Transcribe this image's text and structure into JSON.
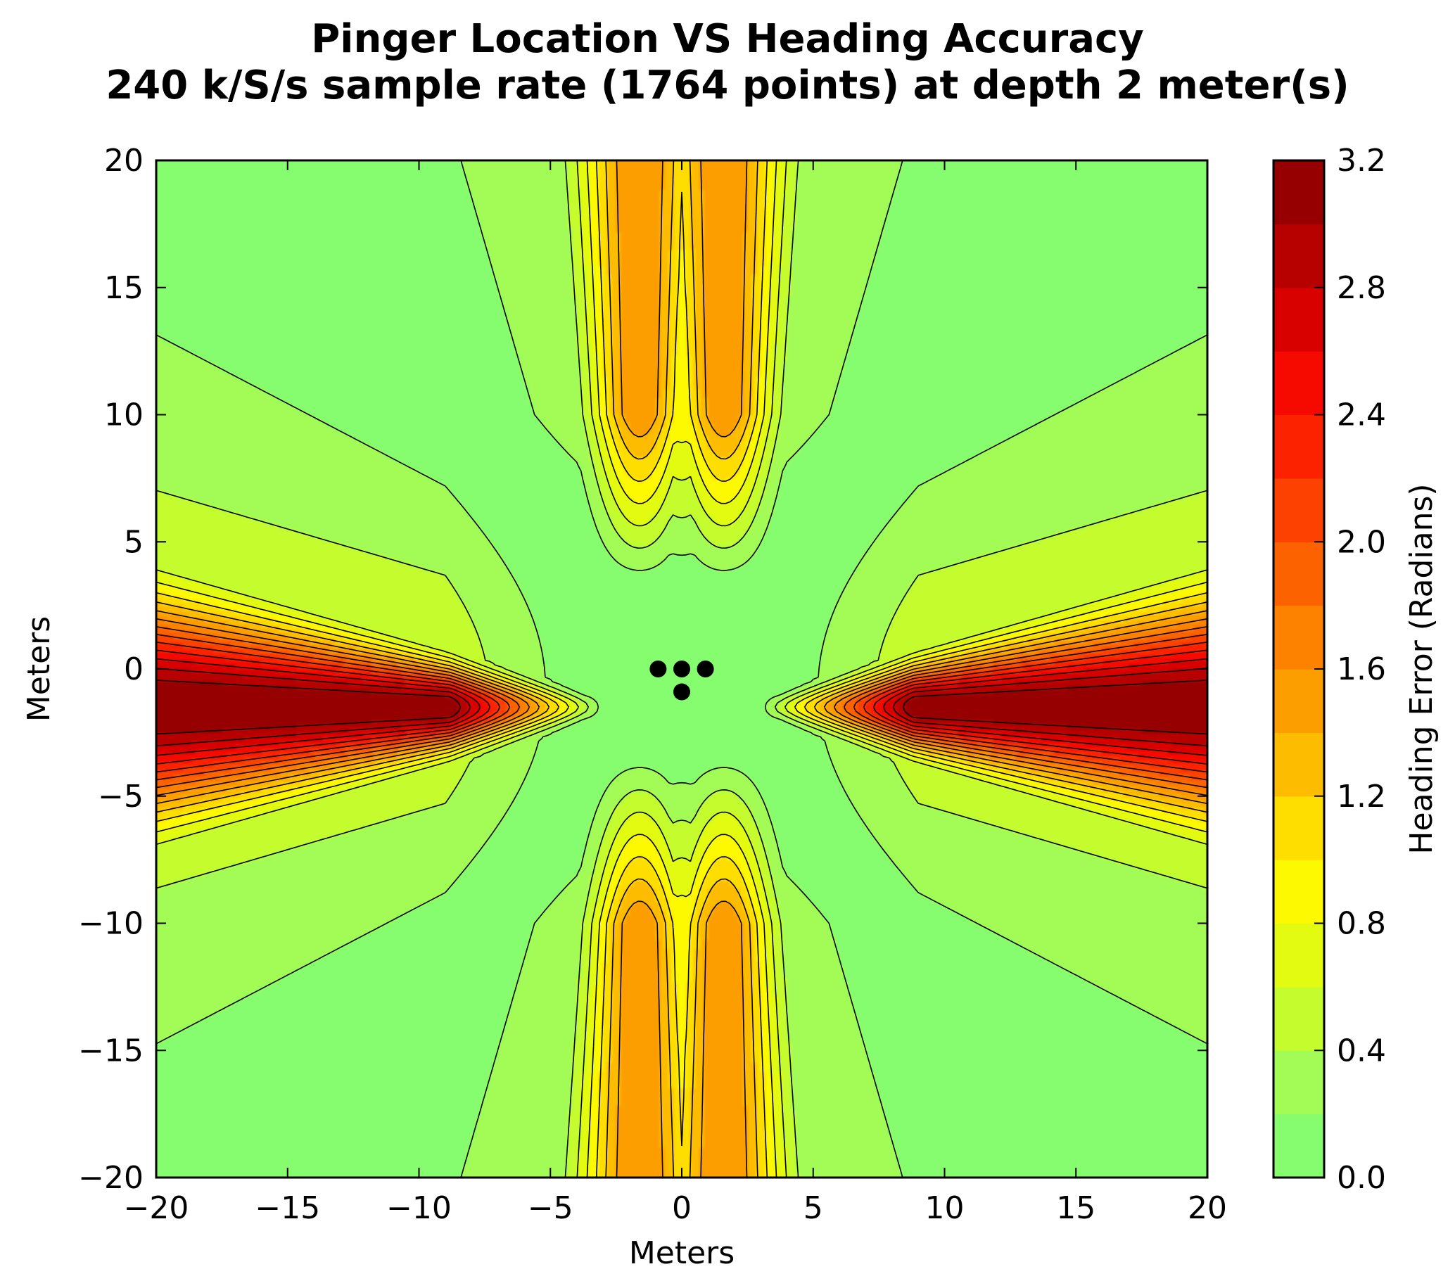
{
  "chart_data": {
    "type": "heatmap",
    "subtype": "filled-contour",
    "title": "Pinger Location VS Heading Accuracy",
    "subtitle": "240 k/S/s sample rate (1764 points) at depth 2 meter(s)",
    "xlabel": "Meters",
    "ylabel": "Meters",
    "colorbar_label": "Heading Error (Radians)",
    "xlim": [
      -20,
      20
    ],
    "ylim": [
      -20,
      20
    ],
    "x_ticks": [
      -20,
      -15,
      -10,
      -5,
      0,
      5,
      10,
      15,
      20
    ],
    "y_ticks": [
      -20,
      -15,
      -10,
      -5,
      0,
      5,
      10,
      15,
      20
    ],
    "x_tick_labels": [
      "−20",
      "−15",
      "−10",
      "−5",
      "0",
      "5",
      "10",
      "15",
      "20"
    ],
    "y_tick_labels": [
      "−20",
      "−15",
      "−10",
      "−5",
      "0",
      "5",
      "10",
      "15",
      "20"
    ],
    "colorbar_ticks": [
      0.0,
      0.4,
      0.8,
      1.2,
      1.6,
      2.0,
      2.4,
      2.8,
      3.2
    ],
    "colorbar_tick_labels": [
      "0.0",
      "0.4",
      "0.8",
      "1.2",
      "1.6",
      "2.0",
      "2.4",
      "2.8",
      "3.2"
    ],
    "levels": [
      0.0,
      0.2,
      0.4,
      0.6,
      0.8,
      1.0,
      1.2,
      1.4,
      1.6,
      1.8,
      2.0,
      2.2,
      2.4,
      2.6,
      2.8,
      3.0,
      3.2
    ],
    "colormap": [
      "#86fd6e",
      "#a3fc55",
      "#c5fc2e",
      "#e2fb10",
      "#fdf900",
      "#fedd00",
      "#febc00",
      "#fd9e00",
      "#fd8200",
      "#fd6200",
      "#fd4100",
      "#fc2200",
      "#f60a00",
      "#d90000",
      "#b70000",
      "#960000"
    ],
    "hydrophones": [
      {
        "x": -0.9,
        "y": 0
      },
      {
        "x": 0,
        "y": 0
      },
      {
        "x": 0.9,
        "y": 0
      },
      {
        "x": 0,
        "y": -0.9
      }
    ],
    "grid": false,
    "legend": "none"
  }
}
